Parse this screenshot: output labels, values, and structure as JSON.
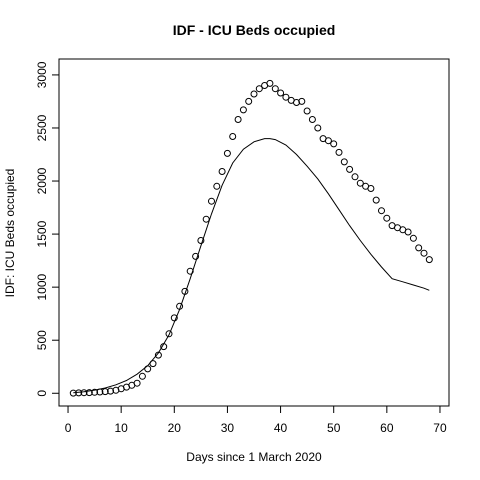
{
  "chart_data": {
    "type": "scatter",
    "title": "IDF - ICU Beds occupied",
    "xlabel": "Days since 1 March 2020",
    "ylabel": "IDF: ICU Beds occupied",
    "xlim": [
      -1.7,
      71.7
    ],
    "ylim": [
      -120,
      3150
    ],
    "x_ticks": [
      0,
      10,
      20,
      30,
      40,
      50,
      60,
      70
    ],
    "y_ticks": [
      0,
      500,
      1000,
      1500,
      2000,
      2500,
      3000
    ],
    "grid": false,
    "legend": "none",
    "series": [
      {
        "kind": "points",
        "marker": "open-circle",
        "x": [
          1,
          2,
          3,
          4,
          5,
          6,
          7,
          8,
          9,
          10,
          11,
          12,
          13,
          14,
          15,
          16,
          17,
          18,
          19,
          20,
          21,
          22,
          23,
          24,
          25,
          26,
          27,
          28,
          29,
          30,
          31,
          32,
          33,
          34,
          35,
          36,
          37,
          38,
          39,
          40,
          41,
          42,
          43,
          44,
          45,
          46,
          47,
          48,
          49,
          50,
          51,
          52,
          53,
          54,
          55,
          56,
          57,
          58,
          59,
          60,
          61,
          62,
          63,
          64,
          65,
          66,
          67,
          68
        ],
        "y": [
          2,
          3,
          5,
          6,
          9,
          12,
          16,
          20,
          28,
          42,
          58,
          75,
          95,
          160,
          230,
          280,
          360,
          440,
          560,
          710,
          820,
          960,
          1150,
          1290,
          1440,
          1640,
          1810,
          1950,
          2090,
          2260,
          2420,
          2580,
          2670,
          2750,
          2820,
          2870,
          2900,
          2920,
          2870,
          2830,
          2790,
          2760,
          2740,
          2750,
          2660,
          2580,
          2500,
          2400,
          2380,
          2350,
          2270,
          2180,
          2110,
          2040,
          1980,
          1950,
          1930,
          1820,
          1720,
          1650,
          1580,
          1560,
          1540,
          1520,
          1460,
          1370,
          1320,
          1260
        ]
      },
      {
        "kind": "line",
        "x": [
          1,
          3,
          5,
          7,
          9,
          11,
          13,
          15,
          17,
          19,
          21,
          23,
          25,
          27,
          29,
          31,
          33,
          35,
          37,
          38,
          39,
          41,
          43,
          45,
          47,
          49,
          51,
          53,
          55,
          57,
          59,
          61,
          63,
          65,
          67,
          68
        ],
        "y": [
          5,
          15,
          30,
          50,
          80,
          120,
          180,
          260,
          380,
          550,
          790,
          1080,
          1390,
          1690,
          1960,
          2170,
          2300,
          2370,
          2400,
          2400,
          2390,
          2340,
          2250,
          2140,
          2020,
          1880,
          1730,
          1580,
          1440,
          1310,
          1190,
          1080,
          1050,
          1020,
          990,
          970
        ]
      }
    ]
  }
}
